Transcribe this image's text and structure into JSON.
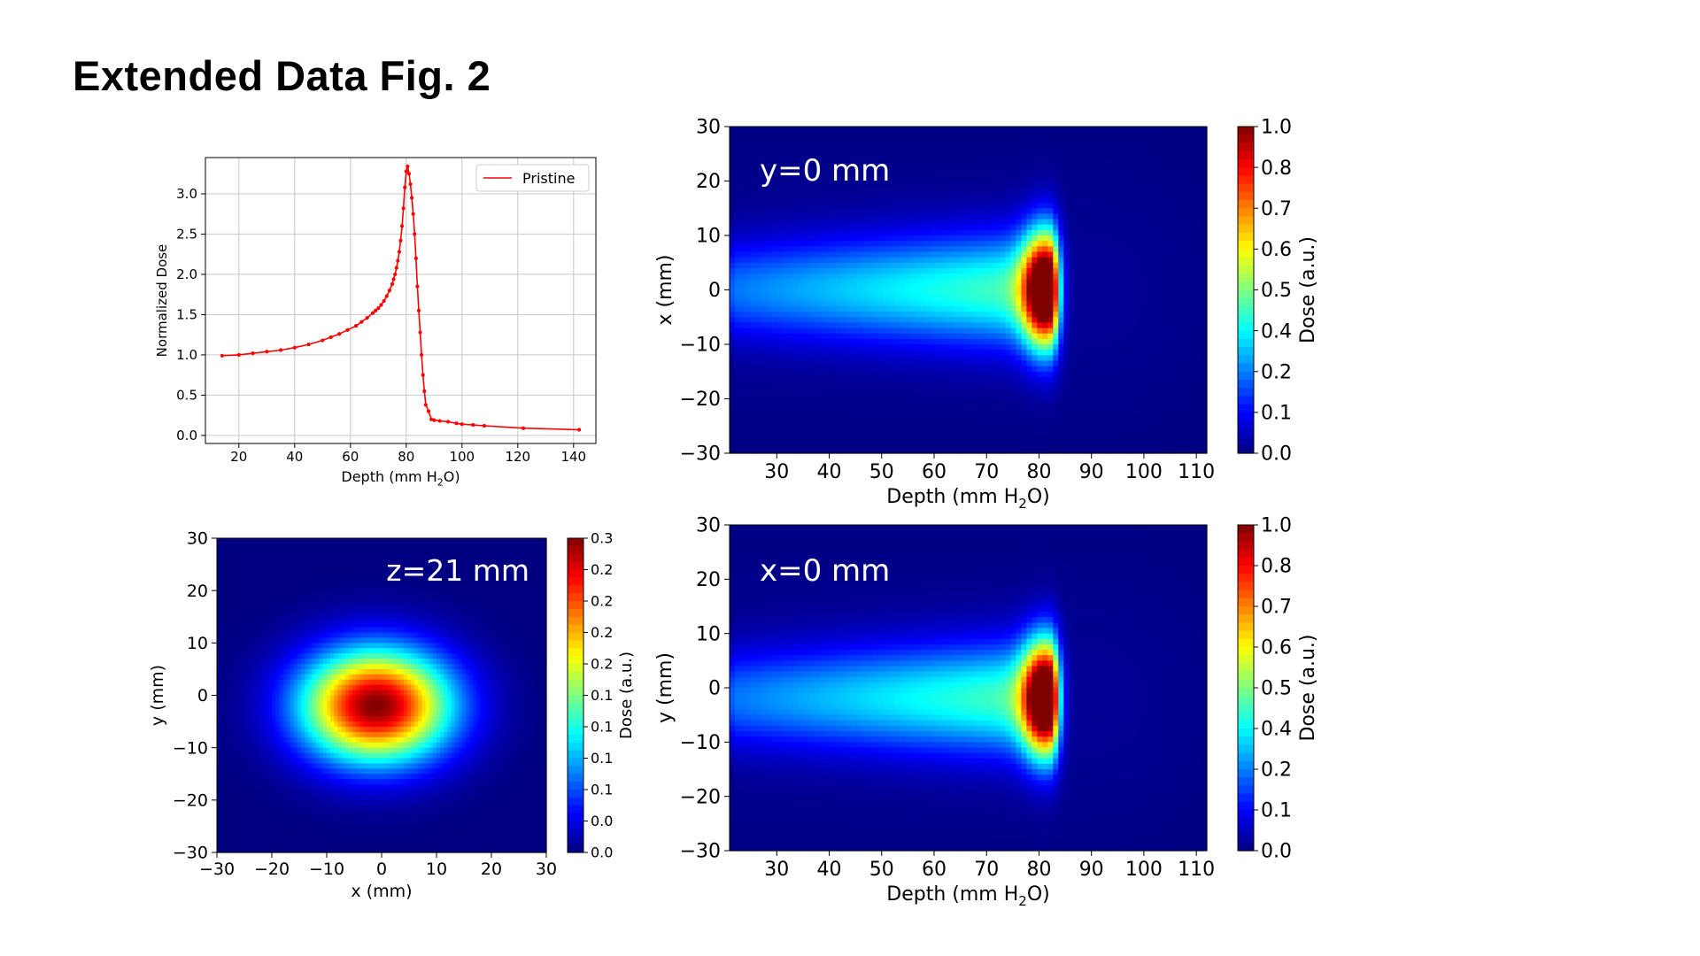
{
  "figure": {
    "title": "Extended Data Fig. 2"
  },
  "chart_data": [
    {
      "type": "line",
      "panel": "top-left",
      "xlabel": "Depth (mm H₂O)",
      "ylabel": "Normalized Dose",
      "xlim": [
        8,
        148
      ],
      "ylim": [
        -0.1,
        3.45
      ],
      "xticks": [
        "20",
        "40",
        "60",
        "80",
        "100",
        "120",
        "140"
      ],
      "yticks": [
        "0.0",
        "0.5",
        "1.0",
        "1.5",
        "2.0",
        "2.5",
        "3.0"
      ],
      "grid": true,
      "legend_position": "top-right",
      "color": "#ff0000",
      "series": [
        {
          "name": "Pristine",
          "x": [
            14,
            20,
            25,
            30,
            35,
            40,
            45,
            50,
            53,
            56,
            59,
            62,
            64,
            66,
            68,
            69,
            70,
            71,
            72,
            73,
            74,
            75,
            75.5,
            76,
            76.5,
            77,
            77.5,
            78,
            78.5,
            79,
            79.5,
            80,
            80.5,
            81,
            81.5,
            82,
            82.5,
            83,
            83.5,
            84,
            84.5,
            85,
            85.5,
            86,
            86.5,
            87,
            88,
            89,
            90,
            92,
            95,
            98,
            100,
            104,
            108,
            122,
            142
          ],
          "y": [
            0.99,
            1.0,
            1.02,
            1.04,
            1.06,
            1.09,
            1.13,
            1.18,
            1.22,
            1.26,
            1.31,
            1.36,
            1.41,
            1.46,
            1.52,
            1.55,
            1.58,
            1.62,
            1.67,
            1.73,
            1.8,
            1.88,
            1.94,
            2.0,
            2.08,
            2.17,
            2.28,
            2.42,
            2.6,
            2.82,
            3.08,
            3.28,
            3.34,
            3.25,
            3.12,
            2.95,
            2.75,
            2.5,
            2.2,
            1.85,
            1.55,
            1.28,
            1.0,
            0.75,
            0.55,
            0.38,
            0.3,
            0.2,
            0.19,
            0.18,
            0.17,
            0.15,
            0.14,
            0.13,
            0.12,
            0.09,
            0.07
          ]
        }
      ]
    },
    {
      "type": "heatmap",
      "panel": "top-right",
      "annotation": "y=0 mm",
      "xlabel": "Depth (mm H₂O)",
      "ylabel": "x (mm)",
      "xlim": [
        21,
        112
      ],
      "ylim": [
        -30,
        30
      ],
      "xticks": [
        "30",
        "40",
        "50",
        "60",
        "70",
        "80",
        "90",
        "100",
        "110"
      ],
      "yticks": [
        "30",
        "20",
        "10",
        "0",
        "−10",
        "−20",
        "−30"
      ],
      "colormap": "jet",
      "peak": {
        "x_depth": 81,
        "x": 0,
        "dose": 1.0
      },
      "colorbar": {
        "label": "Dose (a.u.)",
        "ticks": [
          "1.0",
          "0.8",
          "0.7",
          "0.6",
          "0.5",
          "0.4",
          "0.2",
          "0.1",
          "0.0"
        ]
      }
    },
    {
      "type": "heatmap",
      "panel": "bottom-left",
      "annotation": "z=21 mm",
      "xlabel": "x (mm)",
      "ylabel": "y (mm)",
      "xlim": [
        -30,
        30
      ],
      "ylim": [
        -30,
        30
      ],
      "xticks": [
        "−30",
        "−20",
        "−10",
        "0",
        "10",
        "20",
        "30"
      ],
      "yticks": [
        "30",
        "20",
        "10",
        "0",
        "−10",
        "−20",
        "−30"
      ],
      "colormap": "jet",
      "peak": {
        "x": -1,
        "y": -2,
        "dose": 0.37
      },
      "colorbar": {
        "label": "Dose (a.u.)",
        "ticks": [
          "0.3",
          "0.2",
          "0.2",
          "0.2",
          "0.2",
          "0.1",
          "0.1",
          "0.1",
          "0.1",
          "0.0",
          "0.0"
        ]
      }
    },
    {
      "type": "heatmap",
      "panel": "bottom-right",
      "annotation": "x=0 mm",
      "xlabel": "Depth (mm H₂O)",
      "ylabel": "y (mm)",
      "xlim": [
        21,
        112
      ],
      "ylim": [
        -30,
        30
      ],
      "xticks": [
        "30",
        "40",
        "50",
        "60",
        "70",
        "80",
        "90",
        "100",
        "110"
      ],
      "yticks": [
        "30",
        "20",
        "10",
        "0",
        "−10",
        "−20",
        "−30"
      ],
      "colormap": "jet",
      "peak": {
        "x_depth": 81,
        "y": -2,
        "dose": 1.0
      },
      "colorbar": {
        "label": "Dose (a.u.)",
        "ticks": [
          "1.0",
          "0.8",
          "0.7",
          "0.6",
          "0.5",
          "0.4",
          "0.2",
          "0.1",
          "0.0"
        ]
      }
    }
  ]
}
